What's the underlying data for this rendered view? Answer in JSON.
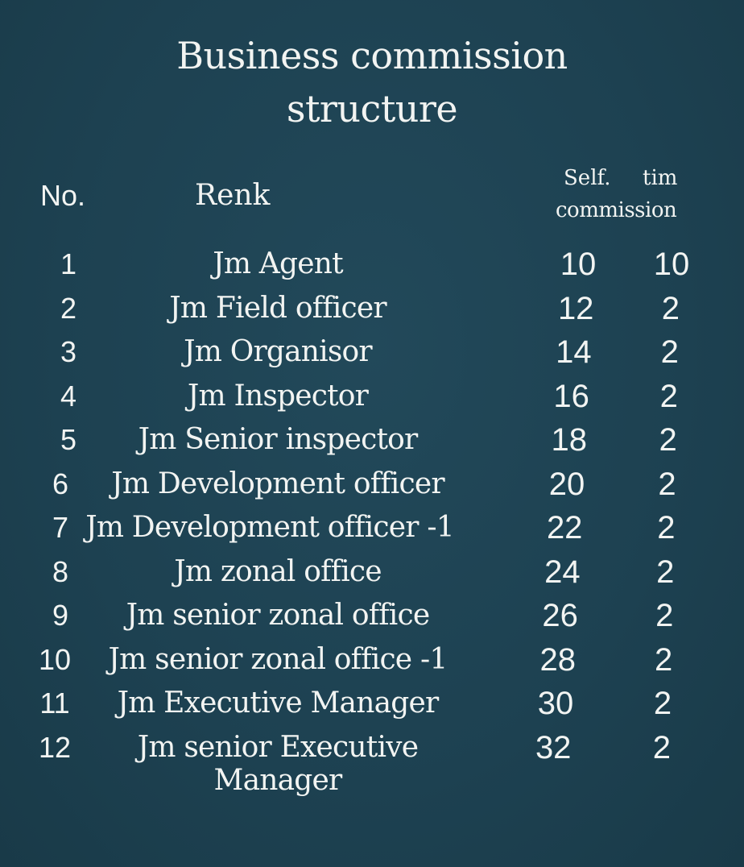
{
  "title": "Business commission structure",
  "headers": {
    "no": "No.",
    "rank": "Renk",
    "self": "Self.",
    "tim": "tim",
    "commission": "commission"
  },
  "rows": [
    {
      "no": "1",
      "rank": "Jm Agent",
      "self": "10",
      "tim": "10"
    },
    {
      "no": "2",
      "rank": "Jm Field officer",
      "self": "12",
      "tim": "2"
    },
    {
      "no": "3",
      "rank": "Jm Organisor",
      "self": "14",
      "tim": "2"
    },
    {
      "no": "4",
      "rank": "Jm Inspector",
      "self": "16",
      "tim": "2"
    },
    {
      "no": "5",
      "rank": "Jm Senior inspector",
      "self": "18",
      "tim": "2"
    },
    {
      "no": "6",
      "rank": "Jm Development officer",
      "self": "20",
      "tim": "2"
    },
    {
      "no": "7",
      "rank": "Jm Development officer -1",
      "self": "22",
      "tim": "2"
    },
    {
      "no": "8",
      "rank": "Jm zonal office",
      "self": "24",
      "tim": "2"
    },
    {
      "no": "9",
      "rank": "Jm senior zonal office",
      "self": "26",
      "tim": "2"
    },
    {
      "no": "10",
      "rank": "Jm senior zonal office -1",
      "self": "28",
      "tim": "2"
    },
    {
      "no": "11",
      "rank": "Jm Executive Manager",
      "self": "30",
      "tim": "2"
    },
    {
      "no": "12",
      "rank": "Jm senior Executive",
      "self": "32",
      "tim": "2"
    }
  ],
  "row12_continuation": "Manager"
}
